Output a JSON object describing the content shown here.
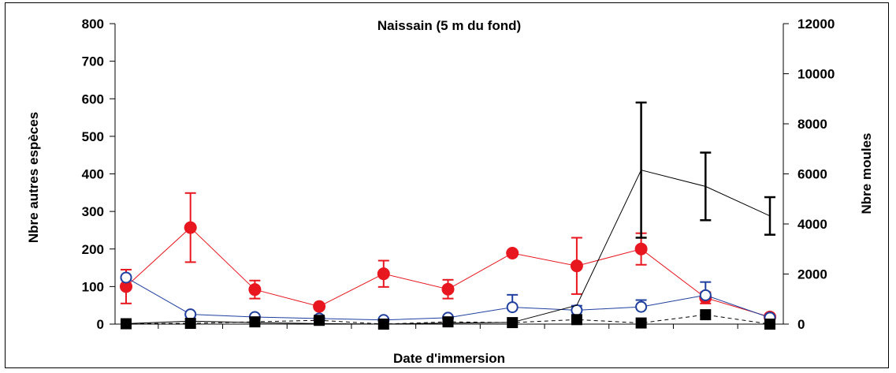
{
  "chart_data": {
    "type": "line",
    "title": "Naissain (5 m du fond)",
    "xlabel": "Date d'immersion",
    "ylabel_left": "Nbre autres espèces",
    "ylabel_right": "Nbre moules",
    "ylim_left": [
      0,
      800
    ],
    "ylim_right": [
      0,
      12000
    ],
    "yticks_left": [
      "0",
      "100",
      "200",
      "300",
      "400",
      "500",
      "600",
      "700",
      "800"
    ],
    "yticks_right": [
      "0",
      "2000",
      "4000",
      "6000",
      "8000",
      "10000",
      "12000"
    ],
    "x_count": 11,
    "grid": false,
    "series": [
      {
        "axis": "left",
        "color": "#e8161e",
        "marker": "filled-circle",
        "x": [
          0,
          1,
          2,
          3,
          4,
          5,
          6,
          7,
          8,
          9,
          10
        ],
        "values": [
          100,
          257,
          92,
          47,
          134,
          93,
          189,
          155,
          200,
          70,
          19
        ],
        "err_low": [
          45,
          92,
          24,
          0,
          35,
          25,
          0,
          75,
          42,
          15,
          0
        ],
        "err_high": [
          45,
          92,
          24,
          0,
          35,
          25,
          0,
          75,
          42,
          15,
          0
        ]
      },
      {
        "axis": "left",
        "color": "#1f3f9f",
        "marker": "open-circle",
        "x": [
          0,
          1,
          2,
          3,
          4,
          5,
          6,
          7,
          8,
          9,
          10
        ],
        "values": [
          124,
          26,
          19,
          15,
          11,
          17,
          45,
          37,
          46,
          77,
          17
        ],
        "err_low": [
          0,
          0,
          0,
          0,
          0,
          0,
          0,
          0,
          0,
          0,
          0
        ],
        "err_high": [
          0,
          0,
          0,
          0,
          0,
          0,
          33,
          12,
          18,
          35,
          0
        ]
      },
      {
        "axis": "left",
        "color": "#000000",
        "marker": "filled-square",
        "dash": true,
        "x": [
          0,
          1,
          2,
          3,
          4,
          5,
          6,
          7,
          8,
          9,
          10
        ],
        "values": [
          1,
          2,
          6,
          10,
          0,
          6,
          4,
          12,
          3,
          25,
          0
        ]
      },
      {
        "axis": "right",
        "color": "#000000",
        "marker": "none",
        "x": [
          0,
          1,
          2,
          3,
          4,
          5,
          6,
          7,
          8,
          9,
          10
        ],
        "values": [
          20,
          120,
          60,
          20,
          0,
          40,
          70,
          750,
          6150,
          5500,
          4320
        ],
        "err_low": [
          0,
          0,
          0,
          0,
          0,
          0,
          0,
          0,
          2700,
          1350,
          750
        ],
        "err_high": [
          0,
          0,
          0,
          0,
          0,
          0,
          0,
          0,
          2700,
          1350,
          750
        ]
      }
    ]
  }
}
